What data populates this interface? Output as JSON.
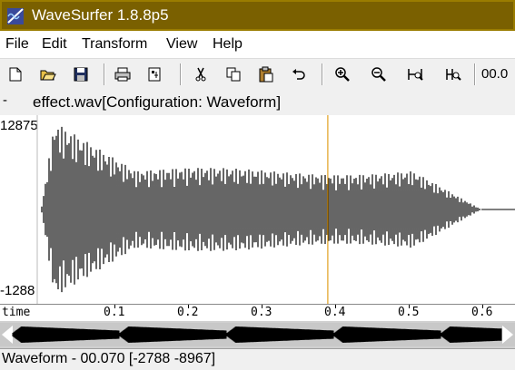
{
  "window": {
    "title": "WaveSurfer 1.8.8p5"
  },
  "menu": [
    "File",
    "Edit",
    "Transform",
    "View",
    "Help"
  ],
  "toolbar": {
    "icons": [
      "new-icon",
      "open-icon",
      "save-icon",
      "print-icon",
      "properties-icon",
      "cut-icon",
      "copy-icon",
      "paste-icon",
      "undo-icon",
      "zoom-in-icon",
      "zoom-out-icon",
      "zoom-fit-icon",
      "zoom-selection-icon"
    ],
    "time_readout": "00.0"
  },
  "pane": {
    "marker": "-",
    "title": "effect.wav[Configuration: Waveform]",
    "y_max_label": "12875",
    "y_min_label": "-1288",
    "cursor_time": 0.39,
    "waveform_color": "#000000",
    "cursor_color": "#e0a020"
  },
  "time_axis": {
    "label": "time",
    "ticks": [
      "0.1",
      "0.2",
      "0.3",
      "0.4",
      "0.5",
      "0.6"
    ]
  },
  "status": {
    "text": "Waveform - 00.070 [-2788 -8967]"
  }
}
